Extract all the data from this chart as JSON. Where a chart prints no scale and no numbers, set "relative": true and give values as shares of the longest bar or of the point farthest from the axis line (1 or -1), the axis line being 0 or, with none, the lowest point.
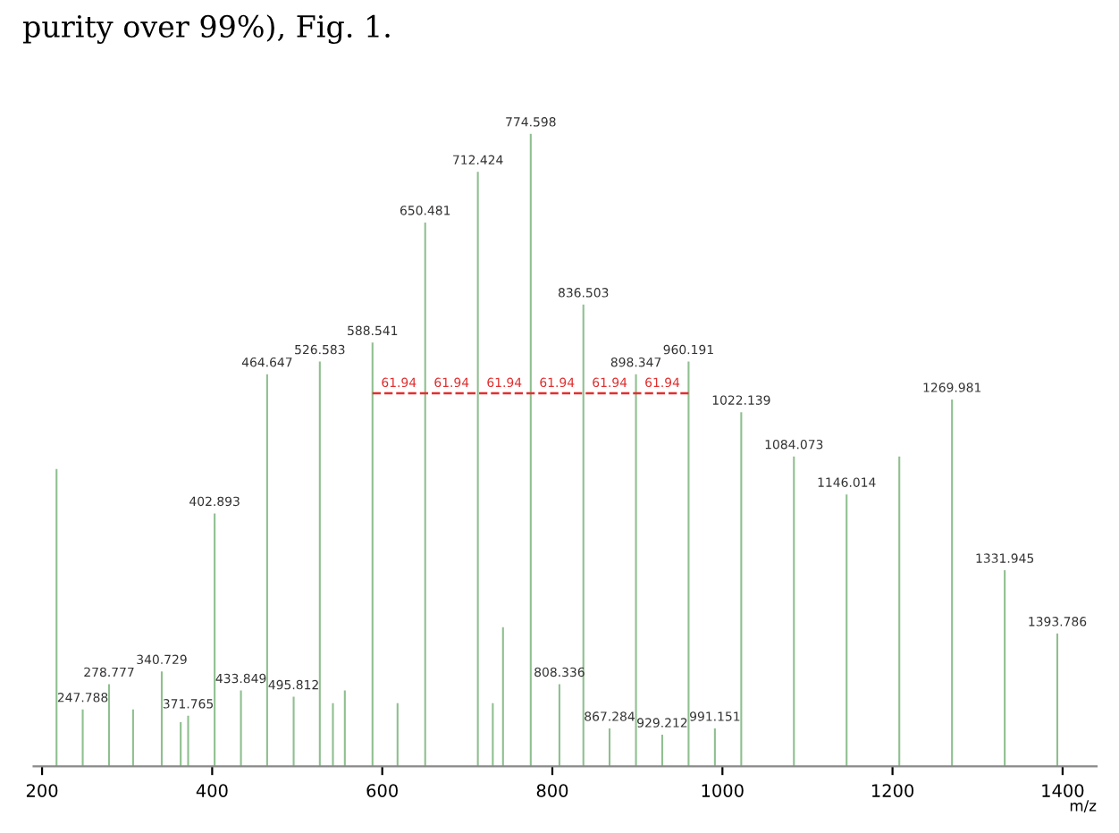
{
  "chart_data": {
    "type": "bar",
    "relative": true,
    "xlabel": "m/z",
    "annotations": [
      "purity over 99%), Fig. 1.",
      {
        "text": "61.94",
        "x": 619.5,
        "y": 0.59
      },
      {
        "text": "61.94",
        "x": 681.5,
        "y": 0.59
      },
      {
        "text": "61.94",
        "x": 743.5,
        "y": 0.59
      },
      {
        "text": "61.94",
        "x": 805.5,
        "y": 0.59
      },
      {
        "text": "61.94",
        "x": 867.4,
        "y": 0.59
      },
      {
        "text": "61.94",
        "x": 929.3,
        "y": 0.59
      },
      {
        "text": "247.788",
        "x": 247.788,
        "y": 0.09
      },
      {
        "text": "278.777",
        "x": 278.777,
        "y": 0.13
      },
      {
        "text": "340.729",
        "x": 340.729,
        "y": 0.15
      },
      {
        "text": "371.765",
        "x": 371.765,
        "y": 0.08
      },
      {
        "text": "402.893",
        "x": 402.893,
        "y": 0.4
      },
      {
        "text": "433.849",
        "x": 433.849,
        "y": 0.12
      },
      {
        "text": "464.647",
        "x": 464.647,
        "y": 0.62
      },
      {
        "text": "495.812",
        "x": 495.812,
        "y": 0.11
      },
      {
        "text": "526.583",
        "x": 526.583,
        "y": 0.64
      },
      {
        "text": "588.541",
        "x": 588.541,
        "y": 0.67
      },
      {
        "text": "650.481",
        "x": 650.481,
        "y": 0.86
      },
      {
        "text": "712.424",
        "x": 712.424,
        "y": 0.94
      },
      {
        "text": "774.598",
        "x": 774.598,
        "y": 1.0
      },
      {
        "text": "808.336",
        "x": 808.336,
        "y": 0.13
      },
      {
        "text": "836.503",
        "x": 836.503,
        "y": 0.73
      },
      {
        "text": "867.284",
        "x": 867.284,
        "y": 0.06
      },
      {
        "text": "898.347",
        "x": 898.347,
        "y": 0.62
      },
      {
        "text": "929.212",
        "x": 929.212,
        "y": 0.05
      },
      {
        "text": "960.191",
        "x": 960.191,
        "y": 0.64
      },
      {
        "text": "991.151",
        "x": 991.151,
        "y": 0.06
      },
      {
        "text": "1022.139",
        "x": 1022.139,
        "y": 0.56
      },
      {
        "text": "1084.073",
        "x": 1084.073,
        "y": 0.49
      },
      {
        "text": "1146.014",
        "x": 1146.014,
        "y": 0.43
      },
      {
        "text": "1269.981",
        "x": 1269.981,
        "y": 0.58
      },
      {
        "text": "1331.945",
        "x": 1331.945,
        "y": 0.31
      },
      {
        "text": "1393.786",
        "x": 1393.786,
        "y": 0.21
      }
    ],
    "xlim": [
      190,
      1440
    ],
    "xticks": [
      200,
      400,
      600,
      800,
      1000,
      1200,
      1400
    ],
    "series": [
      {
        "color": "#8fbf8f",
        "x": [
          217,
          247.788,
          278.777,
          307,
          340.729,
          363,
          371.765,
          402.893,
          433.849,
          464.647,
          495.812,
          526.583,
          542,
          556,
          588.541,
          618,
          650.481,
          712.424,
          730,
          742,
          774.598,
          808.336,
          836.503,
          867.284,
          898.347,
          929.212,
          960.191,
          991.151,
          1022.139,
          1084.073,
          1146.014,
          1208,
          1269.981,
          1331.945,
          1393.786
        ],
        "values": [
          0.47,
          0.09,
          0.13,
          0.09,
          0.15,
          0.07,
          0.08,
          0.4,
          0.12,
          0.62,
          0.11,
          0.64,
          0.1,
          0.12,
          0.67,
          0.1,
          0.86,
          0.94,
          0.1,
          0.22,
          1.0,
          0.13,
          0.73,
          0.06,
          0.62,
          0.05,
          0.64,
          0.06,
          0.56,
          0.49,
          0.43,
          0.49,
          0.58,
          0.31,
          0.21
        ]
      },
      {
        "type": "line",
        "color": "#e03030",
        "line_style": "dashed",
        "x": [
          588.541,
          960.191
        ],
        "values": [
          0.59,
          0.59
        ]
      }
    ]
  }
}
